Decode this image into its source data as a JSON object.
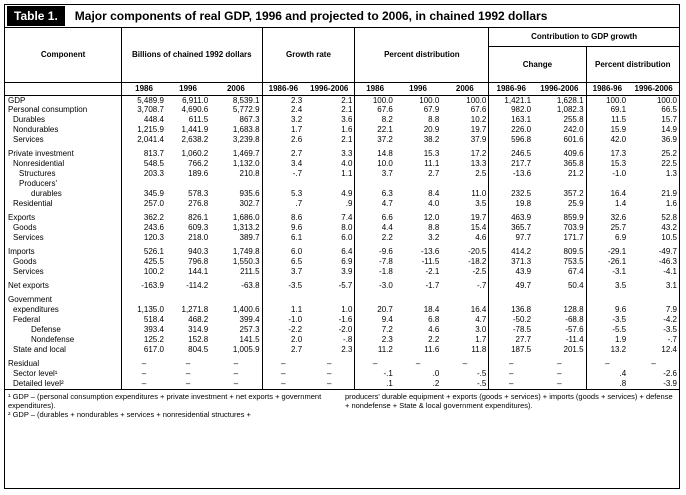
{
  "title": {
    "label": "Table 1.",
    "text": "Major components of real GDP, 1996 and projected to 2006, in chained 1992 dollars"
  },
  "headers": {
    "component": "Component",
    "billions": "Billions of chained 1992 dollars",
    "growth": "Growth rate",
    "percent_dist": "Percent distribution",
    "contribution": "Contribution to GDP growth",
    "change": "Change",
    "contrib_pct": "Percent distribution",
    "years": [
      "1986",
      "1996",
      "2006",
      "1986-96",
      "1996-2006",
      "1986",
      "1996",
      "2006",
      "1986-96",
      "1996-2006",
      "1986-96",
      "1996-2006"
    ]
  },
  "rows": [
    {
      "label": "GDP",
      "indent": 0,
      "values": [
        "5,489.9",
        "6,911.0",
        "8,539.1",
        "2.3",
        "2.1",
        "100.0",
        "100.0",
        "100.0",
        "1,421.1",
        "1,628.1",
        "100.0",
        "100.0"
      ]
    },
    {
      "label": "Personal consumption",
      "indent": 0,
      "values": [
        "3,708.7",
        "4,690.6",
        "5,772.9",
        "2.4",
        "2.1",
        "67.6",
        "67.9",
        "67.6",
        "982.0",
        "1,082.3",
        "69.1",
        "66.5"
      ]
    },
    {
      "label": "Durables",
      "indent": 1,
      "values": [
        "448.4",
        "611.5",
        "867.3",
        "3.2",
        "3.6",
        "8.2",
        "8.8",
        "10.2",
        "163.1",
        "255.8",
        "11.5",
        "15.7"
      ]
    },
    {
      "label": "Nondurables",
      "indent": 1,
      "values": [
        "1,215.9",
        "1,441.9",
        "1,683.8",
        "1.7",
        "1.6",
        "22.1",
        "20.9",
        "19.7",
        "226.0",
        "242.0",
        "15.9",
        "14.9"
      ]
    },
    {
      "label": "Services",
      "indent": 1,
      "values": [
        "2,041.4",
        "2,638.2",
        "3,239.8",
        "2.6",
        "2.1",
        "37.2",
        "38.2",
        "37.9",
        "596.8",
        "601.6",
        "42.0",
        "36.9"
      ]
    },
    {
      "label": "Private investment",
      "indent": 0,
      "section": true,
      "values": [
        "813.7",
        "1,060.2",
        "1,469.7",
        "2.7",
        "3.3",
        "14.8",
        "15.3",
        "17.2",
        "246.5",
        "409.6",
        "17.3",
        "25.2"
      ]
    },
    {
      "label": "Nonresidential",
      "indent": 1,
      "values": [
        "548.5",
        "766.2",
        "1,132.0",
        "3.4",
        "4.0",
        "10.0",
        "11.1",
        "13.3",
        "217.7",
        "365.8",
        "15.3",
        "22.5"
      ]
    },
    {
      "label": "Structures",
      "indent": 2,
      "values": [
        "203.3",
        "189.6",
        "210.8",
        "-.7",
        "1.1",
        "3.7",
        "2.7",
        "2.5",
        "-13.6",
        "21.2",
        "-1.0",
        "1.3"
      ]
    },
    {
      "label": "Producers'",
      "indent": 2,
      "values": [
        "",
        "",
        "",
        "",
        "",
        "",
        "",
        "",
        "",
        "",
        "",
        ""
      ]
    },
    {
      "label": "durables",
      "indent": 3,
      "values": [
        "345.9",
        "578.3",
        "935.6",
        "5.3",
        "4.9",
        "6.3",
        "8.4",
        "11.0",
        "232.5",
        "357.2",
        "16.4",
        "21.9"
      ]
    },
    {
      "label": "Residential",
      "indent": 1,
      "values": [
        "257.0",
        "276.8",
        "302.7",
        ".7",
        ".9",
        "4.7",
        "4.0",
        "3.5",
        "19.8",
        "25.9",
        "1.4",
        "1.6"
      ]
    },
    {
      "label": "Exports",
      "indent": 0,
      "section": true,
      "values": [
        "362.2",
        "826.1",
        "1,686.0",
        "8.6",
        "7.4",
        "6.6",
        "12.0",
        "19.7",
        "463.9",
        "859.9",
        "32.6",
        "52.8"
      ]
    },
    {
      "label": "Goods",
      "indent": 1,
      "values": [
        "243.6",
        "609.3",
        "1,313.2",
        "9.6",
        "8.0",
        "4.4",
        "8.8",
        "15.4",
        "365.7",
        "703.9",
        "25.7",
        "43.2"
      ]
    },
    {
      "label": "Services",
      "indent": 1,
      "values": [
        "120.3",
        "218.0",
        "389.7",
        "6.1",
        "6.0",
        "2.2",
        "3.2",
        "4.6",
        "97.7",
        "171.7",
        "6.9",
        "10.5"
      ]
    },
    {
      "label": "Imports",
      "indent": 0,
      "section": true,
      "values": [
        "526.1",
        "940.3",
        "1,749.8",
        "6.0",
        "6.4",
        "-9.6",
        "-13.6",
        "-20.5",
        "414.2",
        "809.5",
        "-29.1",
        "-49.7"
      ]
    },
    {
      "label": "Goods",
      "indent": 1,
      "values": [
        "425.5",
        "796.8",
        "1,550.3",
        "6.5",
        "6.9",
        "-7.8",
        "-11.5",
        "-18.2",
        "371.3",
        "753.5",
        "-26.1",
        "-46.3"
      ]
    },
    {
      "label": "Services",
      "indent": 1,
      "values": [
        "100.2",
        "144.1",
        "211.5",
        "3.7",
        "3.9",
        "-1.8",
        "-2.1",
        "-2.5",
        "43.9",
        "67.4",
        "-3.1",
        "-4.1"
      ]
    },
    {
      "label": "Net exports",
      "indent": 0,
      "section": true,
      "values": [
        "-163.9",
        "-114.2",
        "-63.8",
        "-3.5",
        "-5.7",
        "-3.0",
        "-1.7",
        "-.7",
        "49.7",
        "50.4",
        "3.5",
        "3.1"
      ]
    },
    {
      "label": "Government",
      "indent": 0,
      "section": true,
      "values": [
        "",
        "",
        "",
        "",
        "",
        "",
        "",
        "",
        "",
        "",
        "",
        ""
      ]
    },
    {
      "label": "expenditures",
      "indent": 1,
      "values": [
        "1,135.0",
        "1,271.8",
        "1,400.6",
        "1.1",
        "1.0",
        "20.7",
        "18.4",
        "16.4",
        "136.8",
        "128.8",
        "9.6",
        "7.9"
      ]
    },
    {
      "label": "Federal",
      "indent": 1,
      "values": [
        "518.4",
        "468.2",
        "399.4",
        "-1.0",
        "-1.6",
        "9.4",
        "6.8",
        "4.7",
        "-50.2",
        "-68.8",
        "-3.5",
        "-4.2"
      ]
    },
    {
      "label": "Defense",
      "indent": 3,
      "values": [
        "393.4",
        "314.9",
        "257.3",
        "-2.2",
        "-2.0",
        "7.2",
        "4.6",
        "3.0",
        "-78.5",
        "-57.6",
        "-5.5",
        "-3.5"
      ]
    },
    {
      "label": "Nondefense",
      "indent": 3,
      "values": [
        "125.2",
        "152.8",
        "141.5",
        "2.0",
        "-.8",
        "2.3",
        "2.2",
        "1.7",
        "27.7",
        "-11.4",
        "1.9",
        "-.7"
      ]
    },
    {
      "label": "State and local",
      "indent": 1,
      "values": [
        "617.0",
        "804.5",
        "1,005.9",
        "2.7",
        "2.3",
        "11.2",
        "11.6",
        "11.8",
        "187.5",
        "201.5",
        "13.2",
        "12.4"
      ]
    },
    {
      "label": "Residual",
      "indent": 0,
      "section": true,
      "values": [
        "–",
        "–",
        "–",
        "–",
        "–",
        "–",
        "–",
        "–",
        "–",
        "–",
        "–",
        "–"
      ]
    },
    {
      "label": "Sector level¹",
      "indent": 1,
      "values": [
        "–",
        "–",
        "–",
        "–",
        "–",
        "-.1",
        ".0",
        "-.5",
        "–",
        "–",
        ".4",
        "-2.6"
      ]
    },
    {
      "label": "Detailed level²",
      "indent": 1,
      "values": [
        "–",
        "–",
        "–",
        "–",
        "–",
        ".1",
        ".2",
        "-.5",
        "–",
        "–",
        ".8",
        "-3.9"
      ]
    }
  ],
  "footnotes": {
    "left": "¹ GDP – (personal consumption expenditures + private investment + net exports + government expenditures).\n² GDP – (durables + nondurables + services + nonresidential structures +",
    "right": "producers' durable equipment + exports (goods + services) + imports (goods + services) + defense + nondefense + State & local government expenditures)."
  }
}
